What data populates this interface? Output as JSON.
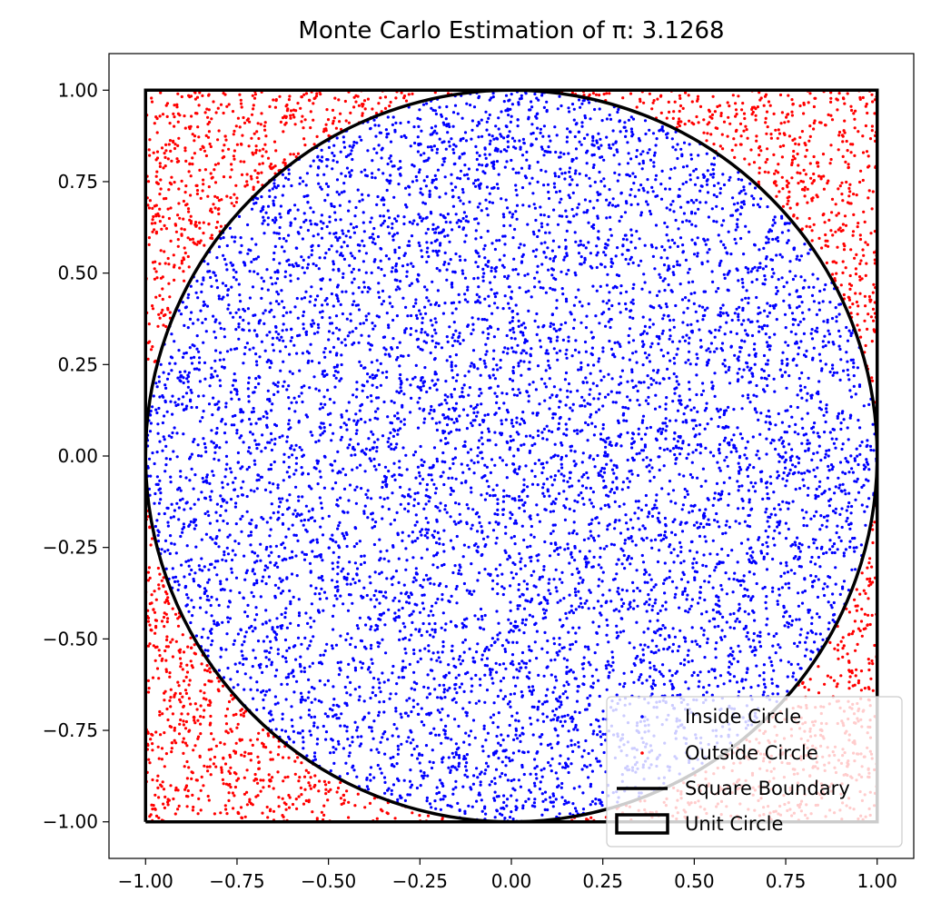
{
  "chart_data": {
    "type": "scatter",
    "title": "Monte Carlo Estimation of π: 3.1268",
    "xlim": [
      -1.1,
      1.1
    ],
    "ylim": [
      -1.1,
      1.1
    ],
    "xticks": [
      -1.0,
      -0.75,
      -0.5,
      -0.25,
      0.0,
      0.25,
      0.5,
      0.75,
      1.0
    ],
    "yticks": [
      -1.0,
      -0.75,
      -0.5,
      -0.25,
      0.0,
      0.25,
      0.5,
      0.75,
      1.0
    ],
    "xtick_labels": [
      "−1.00",
      "−0.75",
      "−0.50",
      "−0.25",
      "0.00",
      "0.25",
      "0.50",
      "0.75",
      "1.00"
    ],
    "ytick_labels": [
      "−1.00",
      "−0.75",
      "−0.50",
      "−0.25",
      "0.00",
      "0.25",
      "0.50",
      "0.75",
      "1.00"
    ],
    "grid": false,
    "legend_position": "bottom-right",
    "series": [
      {
        "name": "Inside Circle",
        "kind": "points",
        "color": "#0000ff",
        "estimated_count": 7817
      },
      {
        "name": "Outside Circle",
        "kind": "points",
        "color": "#ff0000",
        "estimated_count": 2183
      },
      {
        "name": "Square Boundary",
        "kind": "line",
        "color": "#000000",
        "x": [
          -1,
          1,
          1,
          -1,
          -1
        ],
        "y": [
          -1,
          -1,
          1,
          1,
          -1
        ]
      },
      {
        "name": "Unit Circle",
        "kind": "circle",
        "color": "#000000",
        "center": [
          0,
          0
        ],
        "radius": 1
      }
    ],
    "sampling": {
      "distribution": "uniform",
      "x_range": [
        -1,
        1
      ],
      "y_range": [
        -1,
        1
      ]
    }
  }
}
